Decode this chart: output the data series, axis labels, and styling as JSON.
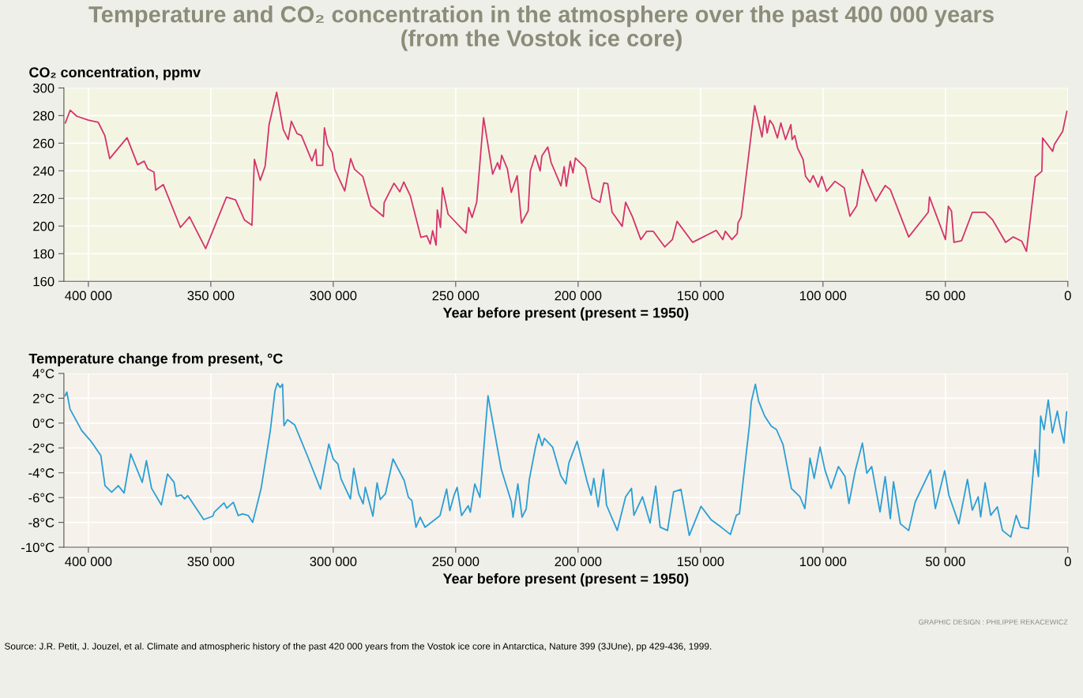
{
  "chart_data": [
    {
      "type": "line",
      "title": "Temperature and CO₂ concentration in the atmosphere over the past 400 000 years\n(from the Vostok ice core)",
      "ylabel": "CO₂ concentration, ppmv",
      "xlabel": "Year before present (present = 1950)",
      "grid": true,
      "marker": "none",
      "line_style": "solid",
      "xlim": [
        410000,
        0
      ],
      "xticks": [
        {
          "value": 400000,
          "label": "400 000"
        },
        {
          "value": 350000,
          "label": "350 000"
        },
        {
          "value": 300000,
          "label": "300 000"
        },
        {
          "value": 250000,
          "label": "250 000"
        },
        {
          "value": 200000,
          "label": "200 000"
        },
        {
          "value": 150000,
          "label": "150 000"
        },
        {
          "value": 100000,
          "label": "100 000"
        },
        {
          "value": 50000,
          "label": "50 000"
        },
        0
      ],
      "ylim": [
        160,
        300
      ],
      "yticks": [
        160,
        180,
        200,
        220,
        240,
        260,
        280,
        300
      ],
      "series": [
        {
          "color": "#d6336c",
          "x": [
            409400,
            407400,
            404700,
            400000,
            396000,
            393300,
            391300,
            384200,
            379900,
            377200,
            375800,
            373200,
            372500,
            369400,
            362400,
            358700,
            352100,
            343600,
            339900,
            336300,
            333200,
            332200,
            329800,
            327800,
            326200,
            323100,
            320400,
            318400,
            317100,
            314800,
            313000,
            308700,
            307100,
            306700,
            304300,
            303600,
            302300,
            300400,
            299400,
            295300,
            292900,
            291300,
            287900,
            284600,
            279500,
            279200,
            275200,
            272800,
            271200,
            268500,
            264200,
            261800,
            260400,
            259400,
            258000,
            257500,
            256200,
            255400,
            253100,
            245800,
            244700,
            243300,
            241400,
            238600,
            234900,
            232900,
            232000,
            231200,
            228900,
            227300,
            224900,
            223100,
            220400,
            219500,
            217500,
            215500,
            214800,
            212400,
            211000,
            207000,
            205700,
            204800,
            203200,
            202100,
            201100,
            197000,
            194300,
            191100,
            189500,
            187900,
            186100,
            182000,
            180600,
            177900,
            174400,
            172000,
            169300,
            164600,
            161500,
            159600,
            153200,
            143600,
            140900,
            139900,
            137200,
            135000,
            134700,
            133400,
            127900,
            124900,
            123800,
            122800,
            121700,
            120400,
            118600,
            117200,
            115300,
            113100,
            112600,
            111500,
            110400,
            108100,
            107100,
            105300,
            104000,
            101900,
            100500,
            98500,
            95100,
            91300,
            89000,
            86200,
            83900,
            81400,
            78400,
            74600,
            72500,
            65000,
            57000,
            56500,
            50000,
            48800,
            47500,
            46500,
            43400,
            39000,
            33800,
            30800,
            25400,
            22300,
            18800,
            16900,
            13300,
            10600,
            10300,
            6200,
            5500,
            2100,
            400
          ],
          "values": [
            274.7,
            283.9,
            279.5,
            276.7,
            275.2,
            265.6,
            248.8,
            264,
            244.4,
            247,
            241.5,
            239,
            226,
            230,
            199,
            206.7,
            183.7,
            221,
            219,
            204.5,
            200.6,
            248.3,
            233.1,
            243.5,
            273.5,
            296.9,
            269.9,
            262.7,
            275.9,
            267,
            265.6,
            247.1,
            255.5,
            244,
            244,
            271.1,
            259.1,
            253.1,
            241.1,
            225.4,
            248.8,
            241.1,
            235.8,
            214.6,
            206.9,
            217,
            231,
            224.8,
            231.9,
            221.8,
            191.8,
            193,
            187,
            196.6,
            186.2,
            211.7,
            199,
            227.8,
            208.6,
            194.9,
            213.4,
            206.2,
            217.5,
            278.4,
            237.5,
            245.9,
            241.1,
            251.2,
            241.6,
            224.4,
            236.4,
            202.1,
            211,
            239.9,
            251.2,
            239.9,
            250.7,
            257.2,
            245.9,
            229.1,
            243,
            228.8,
            246.9,
            238.4,
            249.3,
            242.1,
            220.3,
            217.2,
            231.2,
            230.7,
            210,
            199.8,
            217.2,
            207.1,
            190.2,
            196.2,
            196.2,
            184.9,
            190.2,
            203.4,
            188.2,
            196.9,
            190.2,
            196.2,
            190.2,
            194.5,
            202.2,
            206.6,
            287.2,
            264.5,
            279.5,
            267.4,
            276.6,
            273.4,
            263.8,
            274.7,
            262.6,
            273.4,
            262.6,
            265.5,
            256.6,
            248.1,
            236,
            231.7,
            236.5,
            228.3,
            236,
            225.2,
            232.4,
            227.6,
            207.1,
            214.8,
            240.9,
            230,
            218,
            229.3,
            226.4,
            192.1,
            210,
            221.1,
            190.2,
            214.3,
            210.7,
            188.2,
            189.4,
            210,
            210,
            204.7,
            188.2,
            192.1,
            189,
            181.7,
            235.6,
            239.7,
            263.8,
            254.1,
            259,
            268.6,
            283.1
          ]
        }
      ]
    },
    {
      "type": "line",
      "ylabel": "Temperature change from present, °C",
      "xlabel": "Year before present (present = 1950)",
      "grid": true,
      "marker": "none",
      "line_style": "solid",
      "annotations": [
        "GRAPHIC DESIGN : PHILIPPE REKACEWICZ",
        "Source: J.R. Petit, J. Jouzel, et al. Climate and atmospheric history of the past 420 000 years from the Vostok ice core in Antarctica, Nature 399 (3JUne), pp 429-436, 1999."
      ],
      "xlim": [
        410000,
        0
      ],
      "xticks": [
        {
          "value": 400000,
          "label": "400 000"
        },
        {
          "value": 350000,
          "label": "350 000"
        },
        {
          "value": 300000,
          "label": "300 000"
        },
        {
          "value": 250000,
          "label": "250 000"
        },
        {
          "value": 200000,
          "label": "200 000"
        },
        {
          "value": 150000,
          "label": "150 000"
        },
        {
          "value": 100000,
          "label": "100 000"
        },
        {
          "value": 50000,
          "label": "50 000"
        },
        0
      ],
      "ylim": [
        -10,
        4
      ],
      "yticks": [
        {
          "value": -10,
          "label": "-10°C"
        },
        {
          "value": -8,
          "label": "-8°C"
        },
        {
          "value": -6,
          "label": "-6°C"
        },
        {
          "value": -4,
          "label": "-4°C"
        },
        {
          "value": -2,
          "label": "-2°C"
        },
        {
          "value": 0,
          "label": "0°C"
        },
        {
          "value": 2,
          "label": "2°C"
        },
        {
          "value": 4,
          "label": "4°C"
        }
      ],
      "series": [
        {
          "color": "#2a9fd6",
          "x": [
            409500,
            408800,
            407500,
            402700,
            398600,
            394900,
            393200,
            390500,
            387800,
            385400,
            382700,
            378000,
            376300,
            374200,
            370200,
            367700,
            365000,
            364100,
            362100,
            360700,
            359400,
            352900,
            349200,
            348600,
            344600,
            343500,
            340800,
            338800,
            337000,
            334700,
            332900,
            329500,
            325700,
            323800,
            322800,
            321700,
            320700,
            320100,
            318700,
            315700,
            310600,
            305200,
            301800,
            300000,
            298100,
            296800,
            293000,
            291600,
            289600,
            287800,
            286900,
            283800,
            282100,
            280800,
            278700,
            275600,
            271000,
            269300,
            267900,
            266200,
            264500,
            262500,
            256400,
            253700,
            252400,
            250700,
            249400,
            247600,
            244900,
            244000,
            242200,
            240100,
            236800,
            231400,
            227300,
            226600,
            224600,
            222900,
            221200,
            219900,
            217400,
            216100,
            214700,
            213800,
            210400,
            207100,
            205000,
            203800,
            200400,
            196300,
            194700,
            193600,
            191800,
            189700,
            188400,
            184000,
            180600,
            178200,
            177200,
            173700,
            170600,
            168300,
            166500,
            163500,
            161000,
            158000,
            154600,
            149800,
            145700,
            141600,
            137800,
            135400,
            134100,
            130000,
            129300,
            127600,
            126300,
            123800,
            121100,
            119000,
            116300,
            112900,
            109400,
            107400,
            105300,
            103600,
            101200,
            99200,
            96700,
            93700,
            91000,
            89400,
            86900,
            83900,
            82100,
            80100,
            76700,
            74600,
            72500,
            71200,
            68400,
            65000,
            62300,
            56100,
            54100,
            50300,
            48600,
            44500,
            41000,
            39000,
            36600,
            35600,
            33800,
            31500,
            28800,
            26700,
            23300,
            21100,
            19300,
            16100,
            13400,
            12000,
            11100,
            9700,
            8000,
            6300,
            4300,
            2900,
            1600,
            500
          ],
          "values": [
            2.2,
            2.5,
            1.13,
            -0.61,
            -1.55,
            -2.62,
            -5.04,
            -5.57,
            -5.04,
            -5.63,
            -2.49,
            -4.77,
            -3.03,
            -5.25,
            -6.59,
            -4.1,
            -4.77,
            -5.9,
            -5.79,
            -6.11,
            -5.84,
            -7.77,
            -7.5,
            -7.18,
            -6.43,
            -6.86,
            -6.38,
            -7.45,
            -7.32,
            -7.45,
            -7.99,
            -5.31,
            -0.61,
            2.6,
            3.22,
            2.87,
            3.14,
            -0.21,
            0.27,
            -0.16,
            -2.62,
            -5.31,
            -1.69,
            -2.89,
            -3.29,
            -4.5,
            -6.11,
            -3.64,
            -5.7,
            -6.51,
            -5.17,
            -7.5,
            -4.82,
            -6.16,
            -5.7,
            -2.89,
            -4.64,
            -5.98,
            -6.24,
            -8.39,
            -7.58,
            -8.39,
            -7.45,
            -5.31,
            -7.05,
            -5.84,
            -5.17,
            -7.45,
            -6.65,
            -7.18,
            -4.9,
            -5.98,
            2.2,
            -3.7,
            -6.32,
            -7.58,
            -4.9,
            -7.58,
            -6.91,
            -4.5,
            -1.95,
            -0.88,
            -1.82,
            -1.23,
            -1.95,
            -4.23,
            -4.9,
            -3.23,
            -1.47,
            -4.72,
            -5.8,
            -4.45,
            -6.75,
            -3.72,
            -6.61,
            -8.65,
            -5.94,
            -5.26,
            -7.43,
            -5.94,
            -8.05,
            -5.07,
            -8.38,
            -8.65,
            -5.53,
            -5.34,
            -9.05,
            -6.7,
            -7.78,
            -8.38,
            -8.97,
            -7.43,
            -7.29,
            -0.12,
            1.7,
            3.13,
            1.78,
            0.56,
            -0.25,
            -0.52,
            -1.74,
            -5.26,
            -5.94,
            -6.89,
            -2.82,
            -4.45,
            -1.93,
            -3.77,
            -5.26,
            -3.5,
            -4.31,
            -6.48,
            -3.91,
            -1.61,
            -4.04,
            -3.5,
            -7.16,
            -4.31,
            -7.7,
            -4.72,
            -8.11,
            -8.65,
            -6.34,
            -3.77,
            -6.89,
            -3.83,
            -5.8,
            -8.11,
            -4.53,
            -7.02,
            -5.94,
            -7.56,
            -4.8,
            -7.43,
            -6.75,
            -8.65,
            -9.18,
            -7.43,
            -8.38,
            -8.51,
            -2.15,
            -4.31,
            0.56,
            -0.52,
            1.86,
            -0.79,
            0.97,
            -0.52,
            -1.61,
            0.89
          ]
        }
      ]
    }
  ]
}
